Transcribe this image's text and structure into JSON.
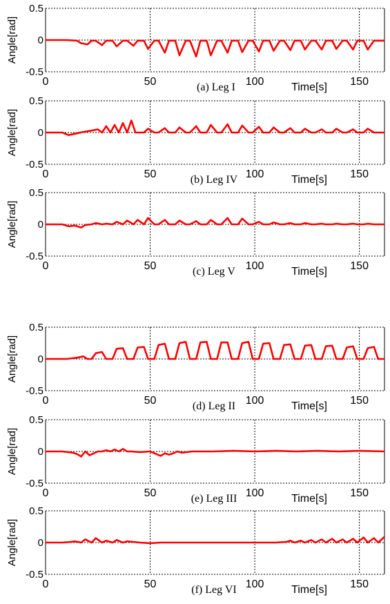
{
  "figure": {
    "line_color": "#ff0000",
    "panels_note": "six stacked time-series panels of leg joint angles"
  },
  "chart_data": [
    {
      "type": "line",
      "caption": "(a) Leg I",
      "xlabel": "Time[s]",
      "ylabel": "Angle[rad]",
      "xlim": [
        0,
        162
      ],
      "ylim": [
        -0.5,
        0.5
      ],
      "xticks": [
        0,
        50,
        100,
        150
      ],
      "yticks": [
        0.5,
        0,
        -0.5
      ],
      "ytick_labels": [
        "0.5",
        "0",
        "-0.5"
      ],
      "grid": true,
      "series": [
        {
          "color": "#ff0000",
          "x": [
            0,
            5,
            10,
            15,
            17,
            20,
            22,
            24,
            27,
            29,
            32,
            34,
            37,
            39,
            42,
            44,
            47,
            49,
            52,
            54,
            57,
            59,
            62,
            64,
            67,
            69,
            72,
            74,
            77,
            79,
            82,
            84,
            87,
            89,
            92,
            94,
            97,
            99,
            102,
            104,
            107,
            109,
            112,
            114,
            117,
            119,
            122,
            124,
            127,
            129,
            132,
            134,
            137,
            139,
            142,
            144,
            147,
            149,
            152,
            154,
            157,
            159,
            162
          ],
          "y": [
            0,
            0,
            0,
            -0.01,
            -0.05,
            -0.07,
            -0.01,
            -0.01,
            -0.08,
            -0.01,
            -0.01,
            -0.1,
            -0.01,
            -0.01,
            -0.09,
            -0.01,
            -0.01,
            -0.14,
            -0.01,
            -0.01,
            -0.2,
            -0.01,
            -0.01,
            -0.24,
            -0.01,
            -0.01,
            -0.26,
            -0.01,
            -0.01,
            -0.24,
            -0.01,
            -0.01,
            -0.2,
            -0.01,
            -0.01,
            -0.19,
            -0.01,
            -0.01,
            -0.18,
            -0.01,
            -0.01,
            -0.17,
            -0.01,
            -0.01,
            -0.16,
            -0.01,
            -0.01,
            -0.15,
            -0.01,
            -0.01,
            -0.15,
            -0.01,
            -0.01,
            -0.14,
            -0.01,
            -0.01,
            -0.15,
            -0.01,
            -0.01,
            -0.15,
            -0.01,
            -0.01,
            -0.01
          ]
        }
      ]
    },
    {
      "type": "line",
      "caption": "(b) Leg IV",
      "xlabel": "Time[s]",
      "ylabel": "Angle[rad]",
      "xlim": [
        0,
        162
      ],
      "ylim": [
        -0.5,
        0.5
      ],
      "xticks": [
        0,
        50,
        100,
        150
      ],
      "yticks": [
        0.5,
        0,
        -0.5
      ],
      "ytick_labels": [
        "0.5",
        "0",
        "-0.5"
      ],
      "grid": true,
      "series": [
        {
          "color": "#ff0000",
          "x": [
            0,
            8,
            11,
            14,
            18,
            22,
            25,
            27,
            29,
            31,
            33,
            35,
            37,
            39,
            41,
            43,
            47,
            49,
            52,
            54,
            57,
            59,
            62,
            64,
            67,
            69,
            72,
            74,
            77,
            79,
            82,
            84,
            87,
            89,
            92,
            94,
            97,
            99,
            102,
            104,
            107,
            109,
            112,
            114,
            117,
            119,
            122,
            124,
            127,
            129,
            132,
            134,
            137,
            139,
            142,
            144,
            147,
            149,
            152,
            154,
            157,
            159,
            162
          ],
          "y": [
            0,
            0,
            -0.04,
            -0.02,
            0.01,
            0.03,
            0.05,
            0.0,
            0.1,
            0.0,
            0.12,
            0.0,
            0.15,
            0.0,
            0.19,
            0.0,
            0.0,
            0.06,
            0.0,
            0.0,
            0.07,
            0.0,
            0.0,
            0.08,
            0.0,
            0.0,
            0.1,
            0.0,
            0.0,
            0.12,
            0.0,
            0.0,
            0.13,
            0.0,
            0.0,
            0.11,
            0.0,
            0.0,
            0.09,
            0.0,
            0.0,
            0.08,
            0.0,
            0.0,
            0.07,
            0.0,
            0.0,
            0.06,
            0.0,
            0.0,
            0.05,
            0.0,
            0.0,
            0.06,
            0.0,
            0.0,
            0.05,
            0.0,
            0.0,
            0.06,
            0.0,
            0.0,
            0.0
          ]
        }
      ]
    },
    {
      "type": "line",
      "caption": "(c) Leg V",
      "xlabel": "Time[s]",
      "ylabel": "Angle[rad]",
      "xlim": [
        0,
        162
      ],
      "ylim": [
        -0.5,
        0.5
      ],
      "xticks": [
        0,
        50,
        100,
        150
      ],
      "yticks": [
        0.5,
        0,
        -0.5
      ],
      "ytick_labels": [
        "0.5",
        "0",
        "-0.5"
      ],
      "grid": true,
      "series": [
        {
          "color": "#ff0000",
          "x": [
            0,
            8,
            11,
            14,
            17,
            19,
            22,
            24,
            27,
            29,
            32,
            34,
            37,
            39,
            42,
            44,
            47,
            49,
            52,
            54,
            57,
            59,
            62,
            64,
            67,
            69,
            72,
            74,
            77,
            79,
            82,
            84,
            87,
            89,
            92,
            94,
            97,
            99,
            102,
            104,
            107,
            109,
            112,
            114,
            117,
            119,
            122,
            124,
            127,
            129,
            132,
            134,
            137,
            139,
            142,
            144,
            147,
            149,
            152,
            154,
            157,
            159,
            162
          ],
          "y": [
            0,
            0,
            -0.03,
            -0.02,
            -0.05,
            -0.01,
            0.0,
            0.02,
            0.0,
            0.01,
            0.0,
            0.04,
            0.0,
            0.06,
            0.0,
            0.07,
            0.0,
            0.1,
            0.0,
            0.0,
            0.07,
            0.0,
            0.0,
            0.06,
            0.0,
            0.0,
            0.05,
            0.0,
            0.0,
            0.07,
            0.0,
            0.0,
            0.1,
            0.0,
            0.0,
            0.09,
            0.0,
            0.0,
            0.04,
            0.0,
            0.0,
            0.03,
            0.0,
            0.0,
            0.02,
            0.0,
            0.0,
            0.02,
            0.0,
            0.0,
            0.01,
            0.0,
            0.0,
            0.01,
            0.0,
            0.0,
            0.01,
            0.0,
            0.0,
            0.01,
            0.0,
            0.0,
            0.0
          ]
        }
      ]
    },
    {
      "type": "line",
      "caption": "(d) Leg II",
      "xlabel": "Time[s]",
      "ylabel": "Angle[rad]",
      "xlim": [
        0,
        162
      ],
      "ylim": [
        -0.5,
        0.5
      ],
      "xticks": [
        0,
        50,
        100,
        150
      ],
      "yticks": [
        0.5,
        0,
        -0.5
      ],
      "ytick_labels": [
        "0.5",
        "0",
        "-0.5"
      ],
      "grid": true,
      "series": [
        {
          "color": "#ff0000",
          "x": [
            0,
            10,
            15,
            18,
            20,
            22,
            24,
            27,
            29,
            32,
            34,
            37,
            39,
            42,
            44,
            47,
            49,
            52,
            54,
            57,
            59,
            62,
            64,
            67,
            69,
            72,
            74,
            77,
            79,
            82,
            84,
            87,
            89,
            92,
            94,
            97,
            99,
            102,
            104,
            107,
            109,
            112,
            114,
            117,
            119,
            122,
            124,
            127,
            129,
            132,
            134,
            137,
            139,
            142,
            144,
            147,
            149,
            152,
            154,
            157,
            159,
            162
          ],
          "y": [
            0,
            0,
            0.02,
            0.04,
            0.0,
            0.0,
            0.09,
            0.11,
            0.0,
            0.0,
            0.16,
            0.17,
            0.0,
            0.0,
            0.18,
            0.19,
            0.0,
            0.0,
            0.22,
            0.24,
            0.0,
            0.0,
            0.25,
            0.27,
            0.0,
            0.0,
            0.26,
            0.27,
            0.0,
            0.0,
            0.26,
            0.26,
            0.0,
            0.0,
            0.25,
            0.27,
            0.0,
            0.0,
            0.24,
            0.25,
            0.0,
            0.0,
            0.22,
            0.23,
            0.0,
            0.0,
            0.21,
            0.22,
            0.0,
            0.0,
            0.2,
            0.21,
            0.0,
            0.0,
            0.18,
            0.2,
            0.0,
            0.0,
            0.17,
            0.19,
            0.0,
            0.0
          ]
        }
      ]
    },
    {
      "type": "line",
      "caption": "(e) Leg III",
      "xlabel": "Time[s]",
      "ylabel": "Angle[rad]",
      "xlim": [
        0,
        162
      ],
      "ylim": [
        -0.5,
        0.5
      ],
      "xticks": [
        0,
        50,
        100,
        150
      ],
      "yticks": [
        0.5,
        0,
        -0.5
      ],
      "ytick_labels": [
        "0.5",
        "0",
        "-0.5"
      ],
      "grid": true,
      "series": [
        {
          "color": "#ff0000",
          "x": [
            0,
            8,
            13,
            15,
            17,
            19,
            21,
            23,
            25,
            27,
            29,
            31,
            33,
            35,
            37,
            39,
            41,
            45,
            50,
            55,
            57,
            59,
            61,
            63,
            65,
            70,
            80,
            90,
            100,
            110,
            120,
            130,
            140,
            150,
            162
          ],
          "y": [
            0,
            0,
            -0.02,
            -0.04,
            -0.08,
            0.0,
            -0.06,
            -0.03,
            0.0,
            0.0,
            0.02,
            0.0,
            0.03,
            0.0,
            0.04,
            0.0,
            0.0,
            -0.01,
            0.0,
            -0.07,
            -0.03,
            -0.05,
            -0.03,
            0.0,
            -0.02,
            0.0,
            0.0,
            0.01,
            0.0,
            0.01,
            0.0,
            0.01,
            0.0,
            0.01,
            0.0
          ]
        }
      ]
    },
    {
      "type": "line",
      "caption": "(f) Leg VI",
      "xlabel": "Time[s]",
      "ylabel": "Angle[rad]",
      "xlim": [
        0,
        162
      ],
      "ylim": [
        -0.5,
        0.5
      ],
      "xticks": [
        0,
        50,
        100,
        150
      ],
      "yticks": [
        0.5,
        0,
        -0.5
      ],
      "ytick_labels": [
        "0.5",
        "0",
        "-0.5"
      ],
      "grid": true,
      "series": [
        {
          "color": "#ff0000",
          "x": [
            0,
            8,
            12,
            14,
            17,
            19,
            22,
            24,
            27,
            29,
            32,
            34,
            37,
            39,
            45,
            50,
            55,
            60,
            70,
            80,
            90,
            100,
            110,
            115,
            117,
            119,
            122,
            124,
            127,
            129,
            132,
            134,
            137,
            139,
            142,
            144,
            147,
            149,
            152,
            154,
            157,
            159,
            162
          ],
          "y": [
            0,
            0,
            0.01,
            0.02,
            0.0,
            0.05,
            0.0,
            0.07,
            0.0,
            0.03,
            0.0,
            0.04,
            0.0,
            0.02,
            0.0,
            -0.01,
            0.0,
            0.0,
            0.0,
            0.0,
            0.0,
            0.0,
            0.0,
            0.01,
            0.03,
            0.0,
            0.03,
            0.0,
            0.04,
            0.0,
            0.05,
            0.0,
            0.06,
            0.0,
            0.05,
            0.0,
            0.06,
            0.0,
            0.08,
            0.0,
            0.07,
            0.0,
            0.09
          ]
        }
      ]
    }
  ]
}
